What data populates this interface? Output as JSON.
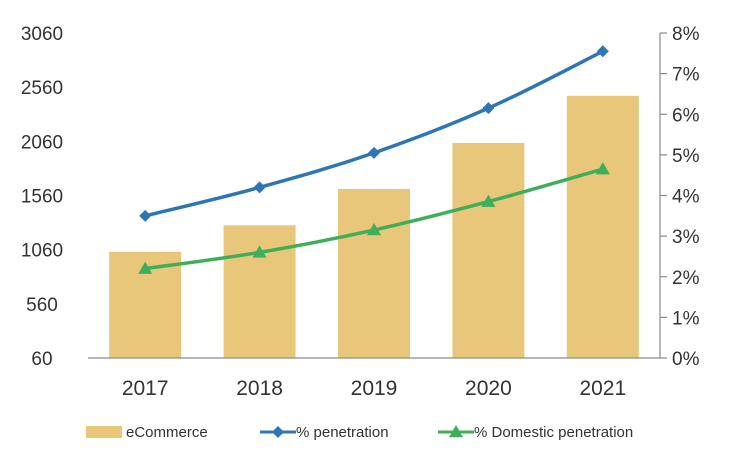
{
  "chart_data": {
    "type": "bar+line",
    "categories": [
      "2017",
      "2018",
      "2019",
      "2020",
      "2021"
    ],
    "bars": {
      "name": "eCommerce",
      "color": "#E8C77A",
      "values": [
        1040,
        1285,
        1620,
        2045,
        2480
      ]
    },
    "lines": [
      {
        "name": "% penetration",
        "color": "#2E75B6",
        "marker": "diamond",
        "values": [
          3.5,
          4.2,
          5.05,
          6.15,
          7.55
        ]
      },
      {
        "name": "% Domestic penetration",
        "color": "#3FAE5A",
        "marker": "triangle",
        "values": [
          2.2,
          2.6,
          3.15,
          3.85,
          4.65
        ]
      }
    ],
    "y_left": {
      "min": 60,
      "max": 3060,
      "ticks": [
        60,
        560,
        1060,
        1560,
        2060,
        2560,
        3060
      ]
    },
    "y_right": {
      "min": 0,
      "max": 8,
      "ticks": [
        "0%",
        "1%",
        "2%",
        "3%",
        "4%",
        "5%",
        "6%",
        "7%",
        "8%"
      ]
    },
    "legend_position": "bottom"
  }
}
